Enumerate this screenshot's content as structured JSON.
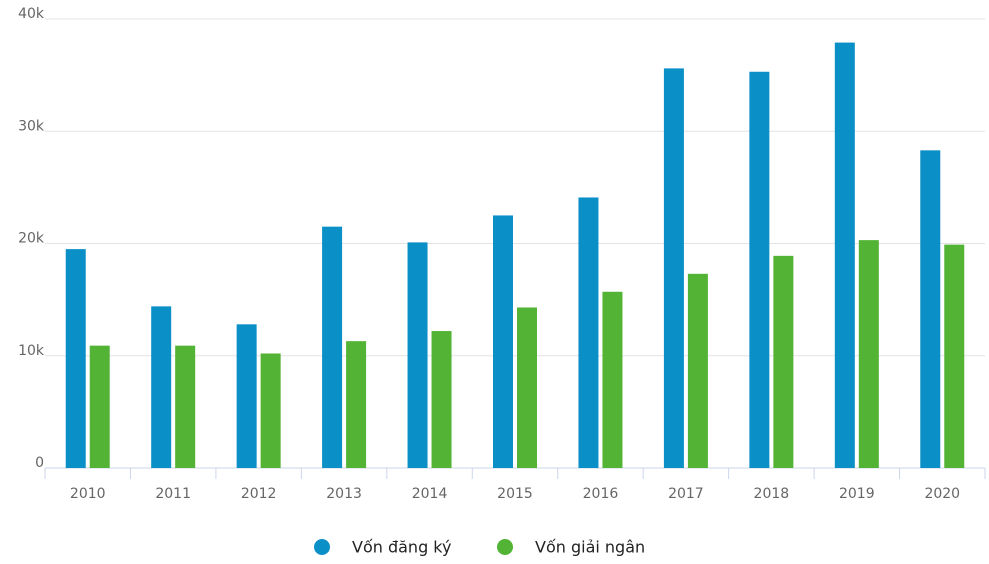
{
  "chart_data": {
    "type": "bar",
    "categories": [
      "2010",
      "2011",
      "2012",
      "2013",
      "2014",
      "2015",
      "2016",
      "2017",
      "2018",
      "2019",
      "2020"
    ],
    "series": [
      {
        "name": "Vốn đăng ký",
        "color": "#0a8fc7",
        "values": [
          19500,
          14400,
          12800,
          21500,
          20100,
          22500,
          24100,
          35600,
          35300,
          37900,
          28300
        ]
      },
      {
        "name": "Vốn giải ngân",
        "color": "#52b335",
        "values": [
          10900,
          10900,
          10200,
          11300,
          12200,
          14300,
          15700,
          17300,
          18900,
          20300,
          19900
        ]
      }
    ],
    "ylim": [
      0,
      40000
    ],
    "yticks": [
      0,
      {
        "value": 10000,
        "label": "10k"
      },
      {
        "value": 20000,
        "label": "20k"
      },
      {
        "value": 30000,
        "label": "30k"
      },
      {
        "value": 40000,
        "label": "40k"
      }
    ],
    "grid": true,
    "legend": "bottom"
  }
}
